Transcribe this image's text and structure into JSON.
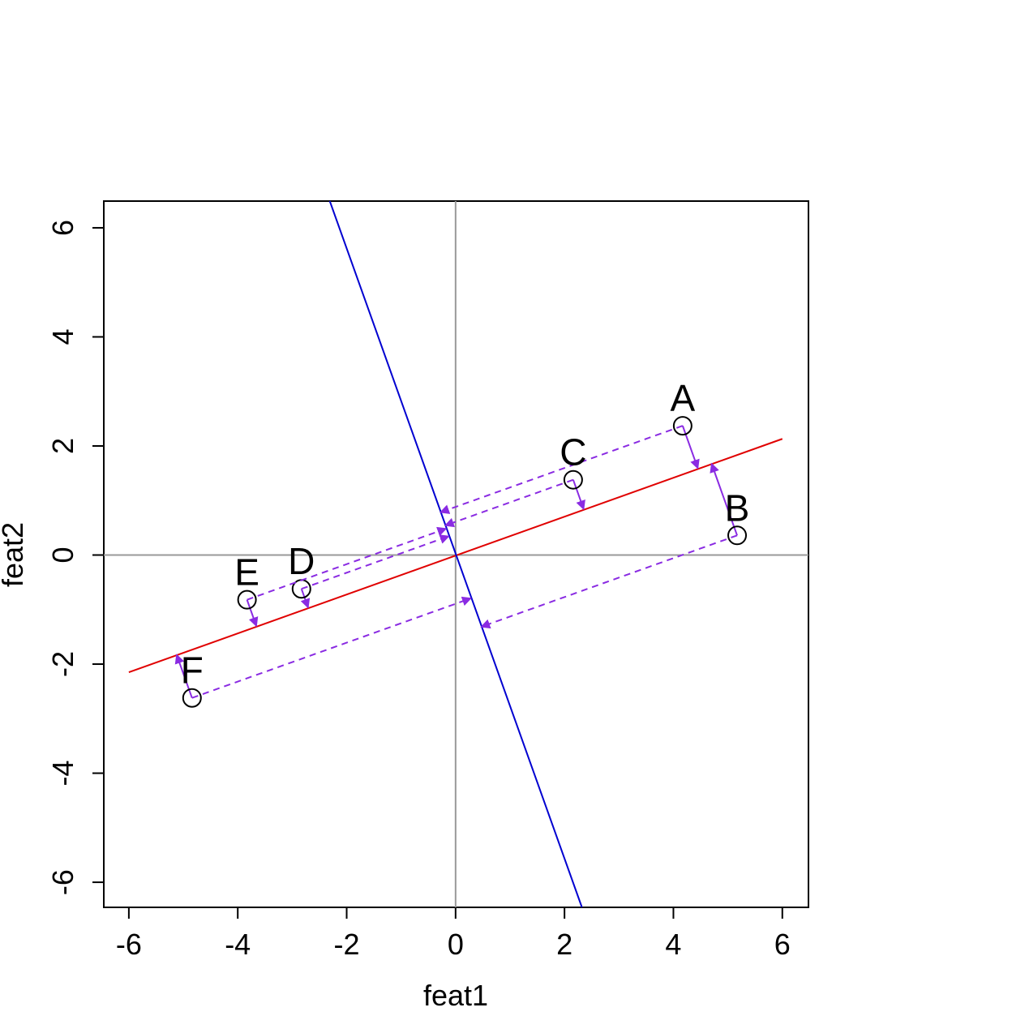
{
  "chart_data": {
    "type": "scatter",
    "x_label": "feat1",
    "y_label": "feat2",
    "labels": [
      "A",
      "B",
      "C",
      "D",
      "E",
      "F"
    ],
    "x": [
      4.17,
      5.17,
      2.16,
      -2.83,
      -3.83,
      -4.84
    ],
    "y": [
      2.37,
      0.36,
      1.38,
      -0.62,
      -0.82,
      -2.62
    ],
    "xlim": [
      -6.46,
      6.48
    ],
    "ylim": [
      -6.46,
      6.49
    ],
    "xticks": [
      -6,
      -4,
      -2,
      0,
      2,
      4,
      6
    ],
    "yticks": [
      -6,
      -4,
      -2,
      0,
      2,
      4,
      6
    ],
    "ref_x": 0,
    "ref_y": 0,
    "lines": [
      {
        "color": "#e00000",
        "x": [
          -6,
          6
        ],
        "y": [
          -2.15,
          2.13
        ]
      },
      {
        "color": "#0000d0",
        "x": [
          -2.31,
          2.32
        ],
        "y": [
          6.49,
          -6.46
        ]
      }
    ],
    "projection_color": "#8a2be2"
  }
}
